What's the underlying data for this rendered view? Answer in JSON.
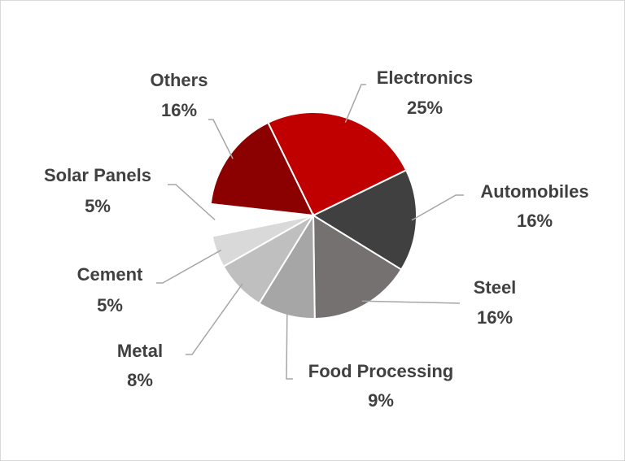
{
  "chart_data": {
    "type": "pie",
    "categories": [
      "Electronics",
      "Automobiles",
      "Steel",
      "Food Processing",
      "Metal",
      "Cement",
      "Solar Panels",
      "Others"
    ],
    "values": [
      25,
      16,
      16,
      9,
      8,
      5,
      5,
      16
    ],
    "value_labels": [
      "25%",
      "16%",
      "16%",
      "9%",
      "8%",
      "5%",
      "5%",
      "16%"
    ],
    "colors": [
      "#c00000",
      "#404040",
      "#767171",
      "#a6a6a6",
      "#bfbfbf",
      "#d9d9d9",
      "#ffffff",
      "#8b0000"
    ]
  }
}
